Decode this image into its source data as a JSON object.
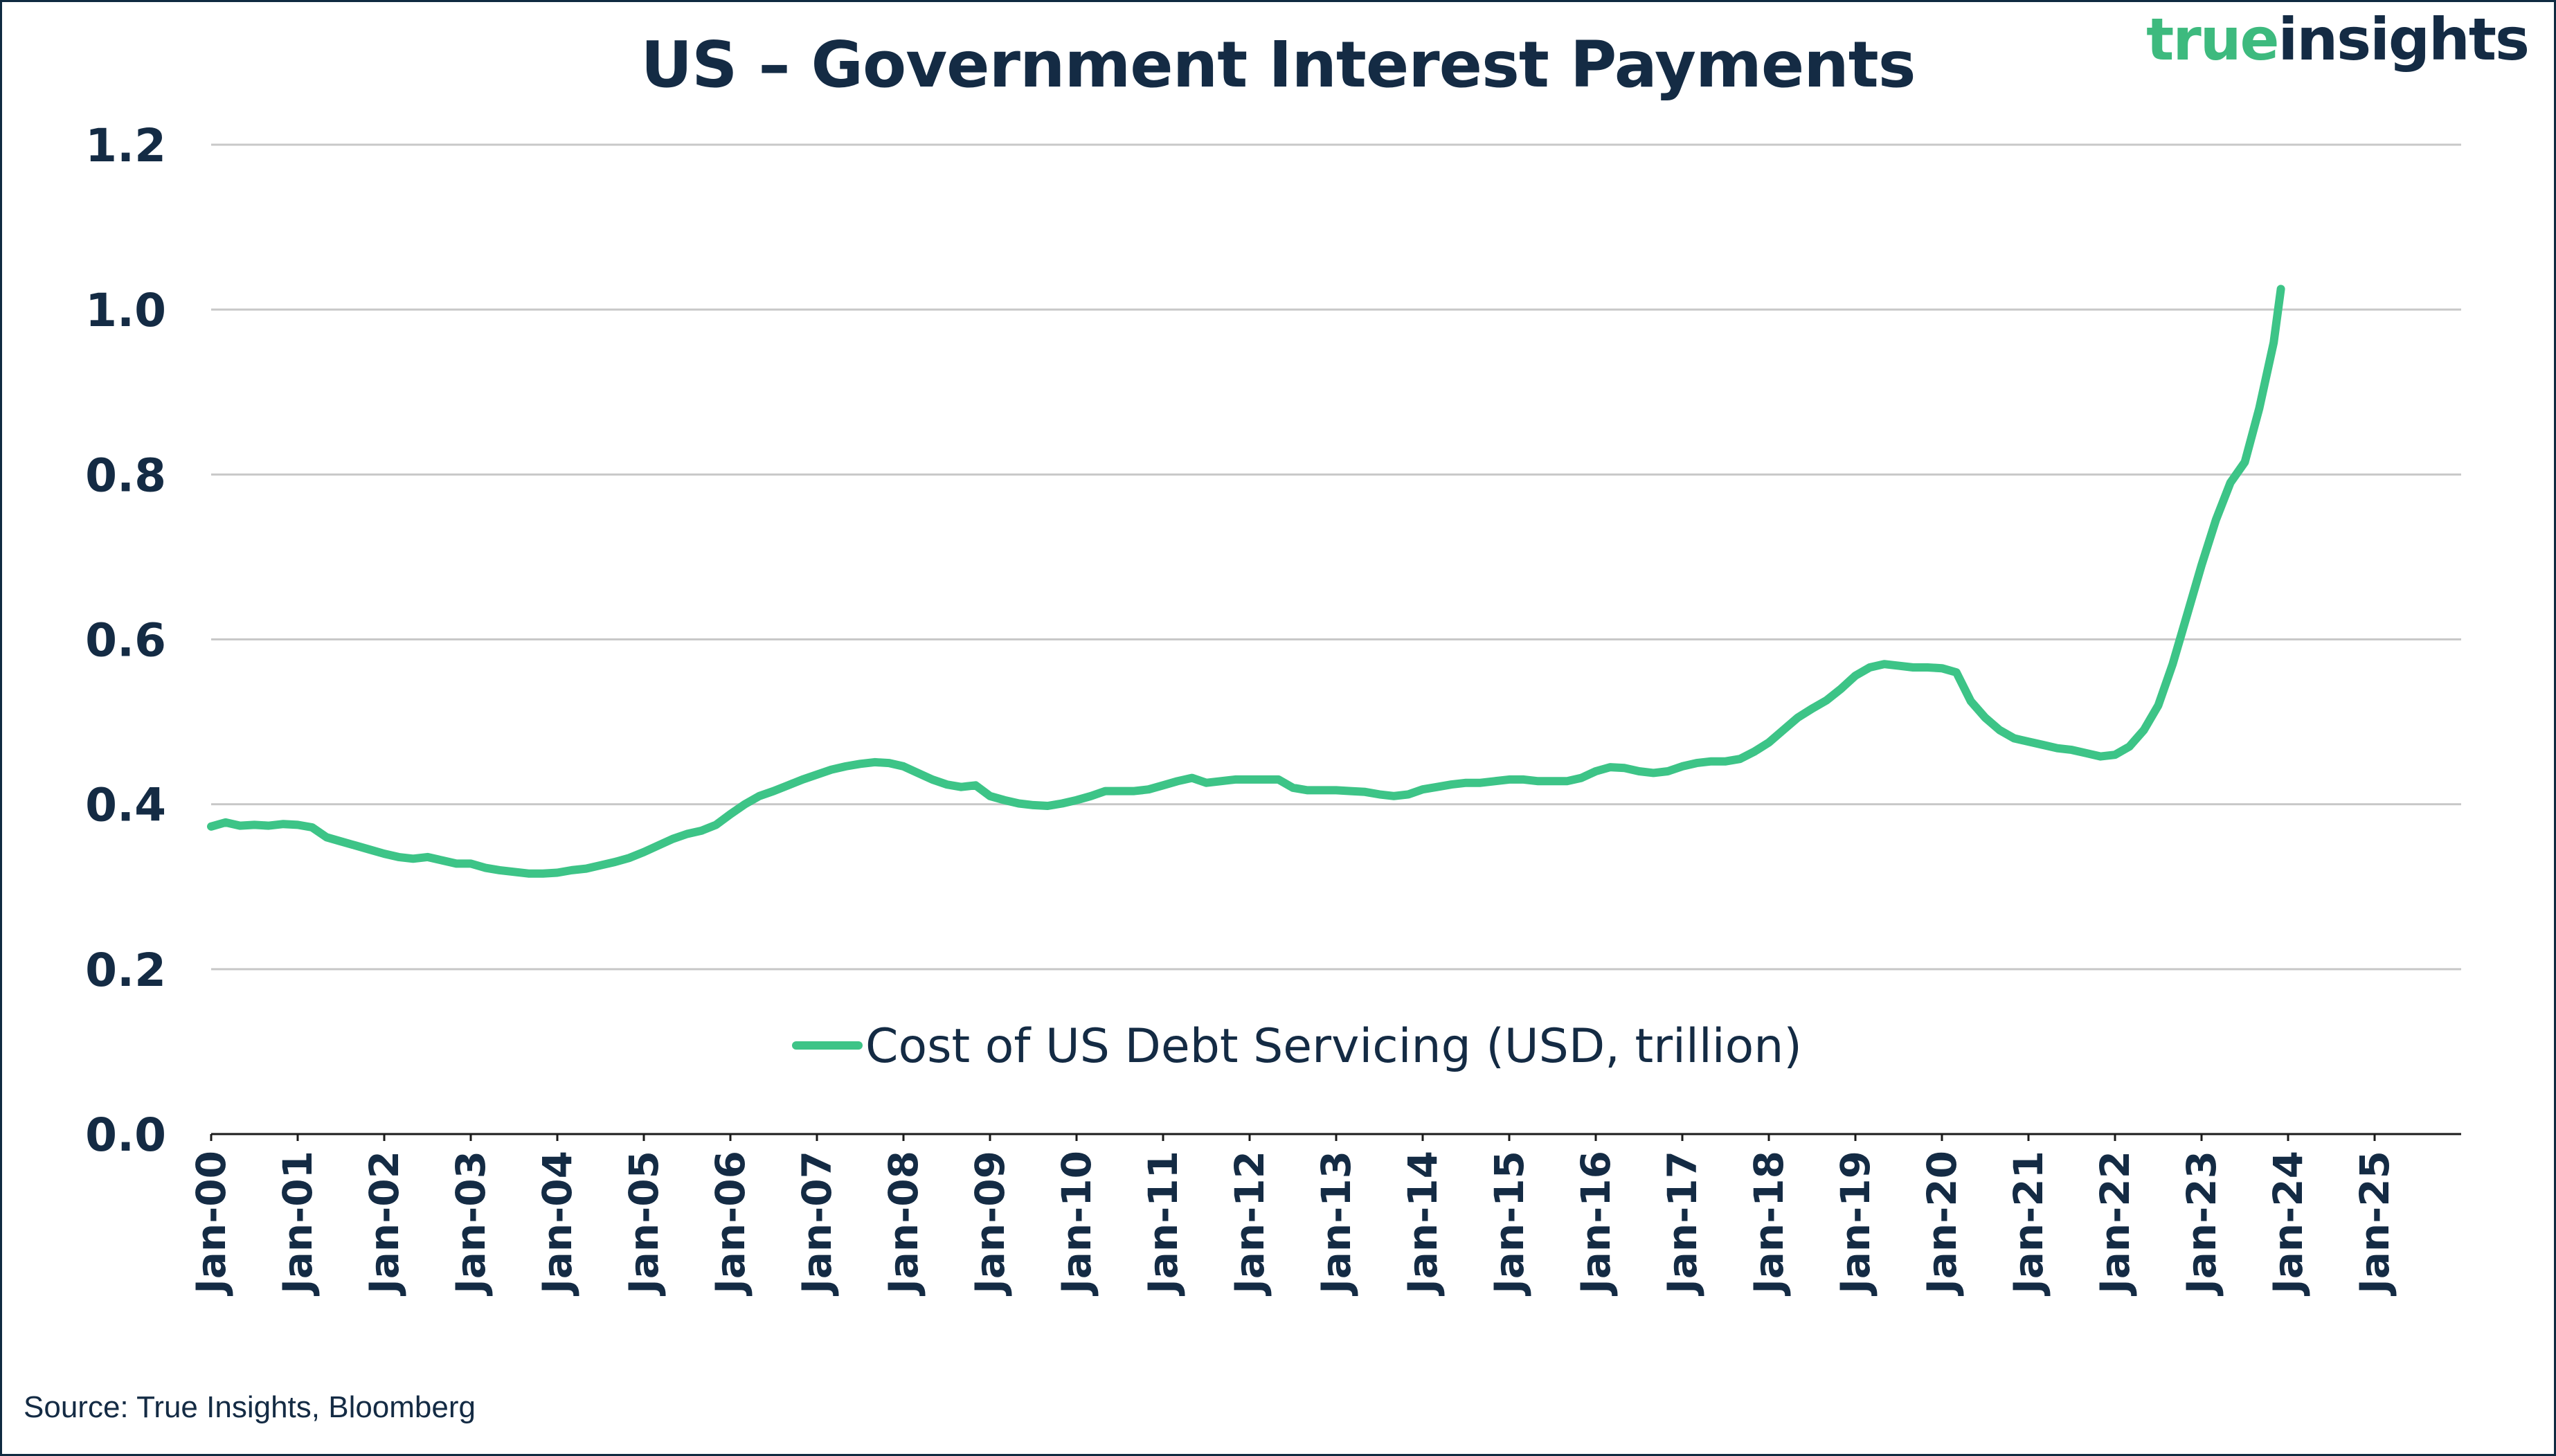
{
  "logo": {
    "part1": "true",
    "part2": "insights"
  },
  "source": "Source: True Insights, Bloomberg",
  "colors": {
    "line": "#3dc487",
    "text": "#142b44",
    "grid": "#c8c8c8",
    "axis": "#1a1a1a"
  },
  "chart_data": {
    "type": "line",
    "title": "US – Government Interest Payments",
    "xlabel": "",
    "ylabel": "",
    "ylim": [
      0,
      1.2
    ],
    "xlim": [
      "2000-01",
      "2025-12"
    ],
    "y_ticks": [
      "0.0",
      "0.2",
      "0.4",
      "0.6",
      "0.8",
      "1.0",
      "1.2"
    ],
    "x_ticks": [
      "Jan-00",
      "Jan-01",
      "Jan-02",
      "Jan-03",
      "Jan-04",
      "Jan-05",
      "Jan-06",
      "Jan-07",
      "Jan-08",
      "Jan-09",
      "Jan-10",
      "Jan-11",
      "Jan-12",
      "Jan-13",
      "Jan-14",
      "Jan-15",
      "Jan-16",
      "Jan-17",
      "Jan-18",
      "Jan-19",
      "Jan-20",
      "Jan-21",
      "Jan-22",
      "Jan-23",
      "Jan-24",
      "Jan-25"
    ],
    "grid": "horizontal",
    "legend_position": "center",
    "series": [
      {
        "name": "Cost of US Debt Servicing (USD, trillion)",
        "points": [
          [
            "2000-01",
            0.373
          ],
          [
            "2000-03",
            0.378
          ],
          [
            "2000-05",
            0.374
          ],
          [
            "2000-07",
            0.375
          ],
          [
            "2000-09",
            0.374
          ],
          [
            "2000-11",
            0.376
          ],
          [
            "2001-01",
            0.375
          ],
          [
            "2001-03",
            0.372
          ],
          [
            "2001-05",
            0.36
          ],
          [
            "2001-07",
            0.355
          ],
          [
            "2001-09",
            0.35
          ],
          [
            "2001-11",
            0.345
          ],
          [
            "2002-01",
            0.34
          ],
          [
            "2002-03",
            0.336
          ],
          [
            "2002-05",
            0.334
          ],
          [
            "2002-07",
            0.336
          ],
          [
            "2002-09",
            0.332
          ],
          [
            "2002-11",
            0.328
          ],
          [
            "2003-01",
            0.328
          ],
          [
            "2003-03",
            0.323
          ],
          [
            "2003-05",
            0.32
          ],
          [
            "2003-07",
            0.318
          ],
          [
            "2003-09",
            0.316
          ],
          [
            "2003-11",
            0.316
          ],
          [
            "2004-01",
            0.317
          ],
          [
            "2004-03",
            0.32
          ],
          [
            "2004-05",
            0.322
          ],
          [
            "2004-07",
            0.326
          ],
          [
            "2004-09",
            0.33
          ],
          [
            "2004-11",
            0.335
          ],
          [
            "2005-01",
            0.342
          ],
          [
            "2005-03",
            0.35
          ],
          [
            "2005-05",
            0.358
          ],
          [
            "2005-07",
            0.364
          ],
          [
            "2005-09",
            0.368
          ],
          [
            "2005-11",
            0.375
          ],
          [
            "2006-01",
            0.388
          ],
          [
            "2006-03",
            0.4
          ],
          [
            "2006-05",
            0.41
          ],
          [
            "2006-07",
            0.416
          ],
          [
            "2006-09",
            0.423
          ],
          [
            "2006-11",
            0.43
          ],
          [
            "2007-01",
            0.436
          ],
          [
            "2007-03",
            0.442
          ],
          [
            "2007-05",
            0.446
          ],
          [
            "2007-07",
            0.449
          ],
          [
            "2007-09",
            0.451
          ],
          [
            "2007-11",
            0.45
          ],
          [
            "2008-01",
            0.446
          ],
          [
            "2008-03",
            0.438
          ],
          [
            "2008-05",
            0.43
          ],
          [
            "2008-07",
            0.424
          ],
          [
            "2008-09",
            0.421
          ],
          [
            "2008-11",
            0.423
          ],
          [
            "2009-01",
            0.41
          ],
          [
            "2009-03",
            0.405
          ],
          [
            "2009-05",
            0.401
          ],
          [
            "2009-07",
            0.399
          ],
          [
            "2009-09",
            0.398
          ],
          [
            "2009-11",
            0.401
          ],
          [
            "2010-01",
            0.405
          ],
          [
            "2010-03",
            0.41
          ],
          [
            "2010-05",
            0.416
          ],
          [
            "2010-07",
            0.416
          ],
          [
            "2010-09",
            0.416
          ],
          [
            "2010-11",
            0.418
          ],
          [
            "2011-01",
            0.423
          ],
          [
            "2011-03",
            0.428
          ],
          [
            "2011-05",
            0.432
          ],
          [
            "2011-07",
            0.426
          ],
          [
            "2011-09",
            0.428
          ],
          [
            "2011-11",
            0.43
          ],
          [
            "2012-01",
            0.43
          ],
          [
            "2012-03",
            0.43
          ],
          [
            "2012-05",
            0.43
          ],
          [
            "2012-07",
            0.42
          ],
          [
            "2012-09",
            0.417
          ],
          [
            "2012-11",
            0.417
          ],
          [
            "2013-01",
            0.417
          ],
          [
            "2013-03",
            0.416
          ],
          [
            "2013-05",
            0.415
          ],
          [
            "2013-07",
            0.412
          ],
          [
            "2013-09",
            0.41
          ],
          [
            "2013-11",
            0.412
          ],
          [
            "2014-01",
            0.418
          ],
          [
            "2014-03",
            0.421
          ],
          [
            "2014-05",
            0.424
          ],
          [
            "2014-07",
            0.426
          ],
          [
            "2014-09",
            0.426
          ],
          [
            "2014-11",
            0.428
          ],
          [
            "2015-01",
            0.43
          ],
          [
            "2015-03",
            0.43
          ],
          [
            "2015-05",
            0.428
          ],
          [
            "2015-07",
            0.428
          ],
          [
            "2015-09",
            0.428
          ],
          [
            "2015-11",
            0.432
          ],
          [
            "2016-01",
            0.44
          ],
          [
            "2016-03",
            0.445
          ],
          [
            "2016-05",
            0.444
          ],
          [
            "2016-07",
            0.44
          ],
          [
            "2016-09",
            0.438
          ],
          [
            "2016-11",
            0.44
          ],
          [
            "2017-01",
            0.446
          ],
          [
            "2017-03",
            0.45
          ],
          [
            "2017-05",
            0.452
          ],
          [
            "2017-07",
            0.452
          ],
          [
            "2017-09",
            0.455
          ],
          [
            "2017-11",
            0.464
          ],
          [
            "2018-01",
            0.475
          ],
          [
            "2018-03",
            0.49
          ],
          [
            "2018-05",
            0.505
          ],
          [
            "2018-07",
            0.516
          ],
          [
            "2018-09",
            0.526
          ],
          [
            "2018-11",
            0.54
          ],
          [
            "2019-01",
            0.556
          ],
          [
            "2019-03",
            0.566
          ],
          [
            "2019-05",
            0.57
          ],
          [
            "2019-07",
            0.568
          ],
          [
            "2019-09",
            0.566
          ],
          [
            "2019-11",
            0.566
          ],
          [
            "2020-01",
            0.565
          ],
          [
            "2020-03",
            0.56
          ],
          [
            "2020-05",
            0.525
          ],
          [
            "2020-07",
            0.505
          ],
          [
            "2020-09",
            0.49
          ],
          [
            "2020-11",
            0.48
          ],
          [
            "2021-01",
            0.476
          ],
          [
            "2021-03",
            0.472
          ],
          [
            "2021-05",
            0.468
          ],
          [
            "2021-07",
            0.466
          ],
          [
            "2021-09",
            0.462
          ],
          [
            "2021-11",
            0.458
          ],
          [
            "2022-01",
            0.46
          ],
          [
            "2022-03",
            0.47
          ],
          [
            "2022-05",
            0.49
          ],
          [
            "2022-07",
            0.52
          ],
          [
            "2022-09",
            0.57
          ],
          [
            "2022-11",
            0.63
          ],
          [
            "2023-01",
            0.69
          ],
          [
            "2023-03",
            0.745
          ],
          [
            "2023-05",
            0.79
          ],
          [
            "2023-07",
            0.815
          ],
          [
            "2023-09",
            0.88
          ],
          [
            "2023-11",
            0.96
          ],
          [
            "2023-12",
            1.025
          ]
        ]
      }
    ]
  }
}
